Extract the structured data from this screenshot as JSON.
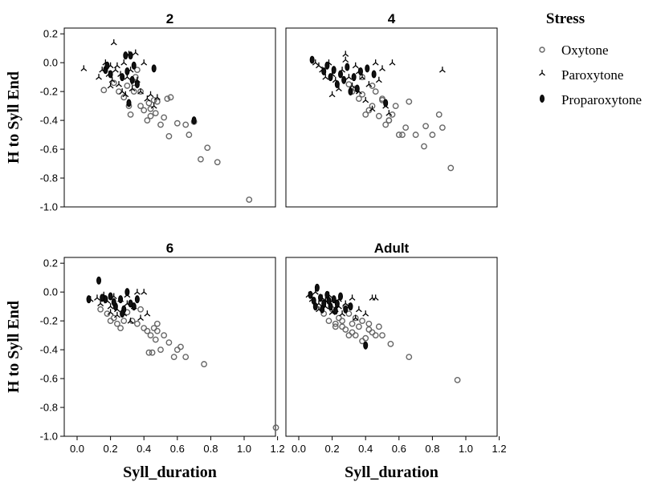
{
  "legend": {
    "title": "Stress",
    "entries": [
      "Oxytone",
      "Paroxytone",
      "Proparoxytone"
    ]
  },
  "chart_data": {
    "type": "scatter",
    "xlabel": "Syll_duration",
    "ylabel": "H to Syll End",
    "xlim": [
      0.0,
      1.25
    ],
    "ylim": [
      -1.0,
      0.24
    ],
    "xticks": [
      "0.0",
      "0.2",
      "0.4",
      "0.6",
      "0.8",
      "1.0",
      "1.2"
    ],
    "yticks": [
      "0.2",
      "0.0",
      "-0.2",
      "-0.4",
      "-0.6",
      "-0.8",
      "-1.0"
    ],
    "legend_position": "right",
    "panels": [
      {
        "title": "2",
        "series": [
          {
            "name": "Oxytone",
            "x": [
              0.16,
              0.22,
              0.25,
              0.28,
              0.31,
              0.32,
              0.34,
              0.35,
              0.36,
              0.38,
              0.4,
              0.42,
              0.43,
              0.44,
              0.46,
              0.47,
              0.48,
              0.5,
              0.52,
              0.54,
              0.55,
              0.56,
              0.6,
              0.65,
              0.67,
              0.7,
              0.74,
              0.78,
              0.84,
              1.03,
              0.3,
              0.34,
              0.44,
              0.38
            ],
            "y": [
              -0.19,
              -0.14,
              -0.2,
              -0.24,
              -0.3,
              -0.36,
              -0.2,
              -0.1,
              -0.05,
              -0.2,
              -0.33,
              -0.4,
              -0.28,
              -0.37,
              -0.26,
              -0.35,
              -0.27,
              -0.43,
              -0.38,
              -0.25,
              -0.51,
              -0.24,
              -0.42,
              -0.43,
              -0.5,
              -0.41,
              -0.67,
              -0.59,
              -0.69,
              -0.95,
              -0.16,
              -0.14,
              -0.32,
              -0.3
            ]
          },
          {
            "name": "Paroxytone",
            "x": [
              0.04,
              0.13,
              0.15,
              0.17,
              0.19,
              0.2,
              0.21,
              0.22,
              0.23,
              0.25,
              0.26,
              0.27,
              0.28,
              0.3,
              0.31,
              0.32,
              0.33,
              0.35,
              0.36,
              0.38,
              0.4,
              0.42,
              0.44,
              0.46,
              0.48,
              0.2,
              0.24,
              0.29
            ],
            "y": [
              -0.04,
              -0.1,
              -0.05,
              0.0,
              -0.08,
              -0.02,
              -0.12,
              0.14,
              -0.05,
              -0.15,
              -0.08,
              -0.2,
              0.0,
              -0.1,
              0.06,
              -0.05,
              -0.18,
              0.07,
              -0.12,
              -0.2,
              0.0,
              -0.25,
              -0.22,
              -0.3,
              -0.24,
              -0.16,
              -0.02,
              -0.22
            ]
          },
          {
            "name": "Proparoxytone",
            "x": [
              0.17,
              0.2,
              0.27,
              0.29,
              0.3,
              0.32,
              0.34,
              0.33,
              0.46,
              0.7,
              0.36,
              0.18,
              0.31
            ],
            "y": [
              -0.05,
              -0.08,
              -0.1,
              0.05,
              -0.06,
              0.05,
              -0.02,
              -0.12,
              -0.04,
              -0.4,
              -0.15,
              -0.02,
              -0.28
            ]
          }
        ]
      },
      {
        "title": "4",
        "series": [
          {
            "name": "Oxytone",
            "x": [
              0.3,
              0.32,
              0.34,
              0.36,
              0.38,
              0.4,
              0.42,
              0.44,
              0.46,
              0.48,
              0.5,
              0.52,
              0.54,
              0.56,
              0.58,
              0.6,
              0.62,
              0.64,
              0.66,
              0.7,
              0.75,
              0.76,
              0.8,
              0.84,
              0.86,
              0.91,
              0.38,
              0.44,
              0.5,
              0.54
            ],
            "y": [
              -0.15,
              -0.2,
              -0.18,
              -0.25,
              -0.1,
              -0.36,
              -0.33,
              -0.3,
              -0.2,
              -0.37,
              -0.26,
              -0.43,
              -0.4,
              -0.36,
              -0.3,
              -0.5,
              -0.5,
              -0.45,
              -0.27,
              -0.5,
              -0.58,
              -0.44,
              -0.5,
              -0.36,
              -0.45,
              -0.73,
              -0.22,
              -0.16,
              -0.25,
              -0.4
            ]
          },
          {
            "name": "Paroxytone",
            "x": [
              0.1,
              0.12,
              0.14,
              0.16,
              0.18,
              0.2,
              0.22,
              0.24,
              0.26,
              0.28,
              0.3,
              0.32,
              0.34,
              0.36,
              0.38,
              0.4,
              0.42,
              0.44,
              0.46,
              0.5,
              0.52,
              0.54,
              0.56,
              0.86,
              0.2,
              0.28,
              0.36,
              0.48
            ],
            "y": [
              0.0,
              -0.02,
              -0.05,
              -0.1,
              0.0,
              -0.08,
              -0.12,
              -0.18,
              -0.05,
              0.06,
              -0.1,
              -0.16,
              -0.02,
              -0.2,
              -0.1,
              -0.26,
              -0.15,
              -0.32,
              0.0,
              -0.04,
              -0.3,
              -0.35,
              0.0,
              -0.05,
              -0.22,
              0.02,
              -0.06,
              -0.12
            ]
          },
          {
            "name": "Proparoxytone",
            "x": [
              0.08,
              0.15,
              0.17,
              0.19,
              0.21,
              0.23,
              0.25,
              0.27,
              0.29,
              0.31,
              0.33,
              0.35,
              0.37,
              0.41,
              0.45,
              0.52
            ],
            "y": [
              0.02,
              -0.06,
              -0.02,
              -0.1,
              -0.05,
              -0.15,
              -0.08,
              -0.12,
              -0.03,
              -0.2,
              -0.1,
              -0.18,
              -0.06,
              -0.04,
              -0.08,
              -0.28
            ]
          }
        ]
      },
      {
        "title": "6",
        "series": [
          {
            "name": "Oxytone",
            "x": [
              0.14,
              0.18,
              0.2,
              0.22,
              0.24,
              0.26,
              0.28,
              0.3,
              0.33,
              0.36,
              0.38,
              0.4,
              0.42,
              0.44,
              0.45,
              0.46,
              0.47,
              0.48,
              0.5,
              0.52,
              0.55,
              0.58,
              0.6,
              0.62,
              0.65,
              0.76,
              1.19,
              0.43,
              0.48
            ],
            "y": [
              -0.12,
              -0.15,
              -0.2,
              -0.18,
              -0.22,
              -0.25,
              -0.2,
              -0.14,
              -0.2,
              -0.22,
              -0.12,
              -0.25,
              -0.27,
              -0.3,
              -0.42,
              -0.25,
              -0.33,
              -0.22,
              -0.4,
              -0.3,
              -0.35,
              -0.45,
              -0.4,
              -0.38,
              -0.45,
              -0.5,
              -0.94,
              -0.42,
              -0.27
            ]
          },
          {
            "name": "Paroxytone",
            "x": [
              0.08,
              0.12,
              0.14,
              0.16,
              0.18,
              0.2,
              0.22,
              0.24,
              0.26,
              0.28,
              0.3,
              0.32,
              0.34,
              0.36,
              0.38,
              0.4,
              0.42,
              0.2,
              0.24,
              0.3
            ],
            "y": [
              -0.05,
              -0.04,
              -0.08,
              -0.02,
              -0.06,
              -0.1,
              -0.03,
              -0.12,
              -0.05,
              -0.15,
              -0.08,
              -0.2,
              -0.1,
              0.0,
              -0.18,
              0.0,
              -0.15,
              -0.14,
              -0.16,
              -0.02
            ]
          },
          {
            "name": "Proparoxytone",
            "x": [
              0.07,
              0.13,
              0.17,
              0.2,
              0.23,
              0.26,
              0.28,
              0.3,
              0.32,
              0.34,
              0.36,
              0.15,
              0.22,
              0.27
            ],
            "y": [
              -0.05,
              0.08,
              -0.05,
              -0.03,
              -0.1,
              -0.05,
              -0.12,
              0.0,
              -0.08,
              -0.1,
              -0.05,
              -0.04,
              -0.07,
              -0.15
            ]
          }
        ]
      },
      {
        "title": "Adult",
        "series": [
          {
            "name": "Oxytone",
            "x": [
              0.15,
              0.18,
              0.2,
              0.22,
              0.24,
              0.26,
              0.28,
              0.3,
              0.32,
              0.34,
              0.36,
              0.38,
              0.4,
              0.42,
              0.44,
              0.46,
              0.48,
              0.5,
              0.55,
              0.66,
              0.95,
              0.22,
              0.26,
              0.3,
              0.34,
              0.38,
              0.42,
              0.28,
              0.32
            ],
            "y": [
              -0.15,
              -0.2,
              -0.12,
              -0.24,
              -0.18,
              -0.2,
              -0.26,
              -0.15,
              -0.22,
              -0.3,
              -0.24,
              -0.2,
              -0.32,
              -0.22,
              -0.28,
              -0.3,
              -0.24,
              -0.3,
              -0.36,
              -0.45,
              -0.61,
              -0.22,
              -0.24,
              -0.3,
              -0.18,
              -0.34,
              -0.26,
              -0.1,
              -0.28
            ]
          },
          {
            "name": "Paroxytone",
            "x": [
              0.06,
              0.08,
              0.1,
              0.12,
              0.14,
              0.16,
              0.18,
              0.2,
              0.22,
              0.24,
              0.26,
              0.28,
              0.3,
              0.32,
              0.34,
              0.36,
              0.4,
              0.44,
              0.46,
              0.12,
              0.16,
              0.2,
              0.24
            ],
            "y": [
              -0.02,
              -0.05,
              0.0,
              -0.08,
              -0.04,
              -0.1,
              -0.02,
              -0.06,
              -0.12,
              -0.05,
              -0.15,
              -0.08,
              -0.1,
              -0.04,
              -0.18,
              -0.12,
              -0.15,
              -0.04,
              -0.04,
              -0.12,
              -0.06,
              -0.14,
              -0.1
            ]
          },
          {
            "name": "Proparoxytone",
            "x": [
              0.07,
              0.09,
              0.11,
              0.13,
              0.15,
              0.17,
              0.19,
              0.21,
              0.23,
              0.25,
              0.28,
              0.31,
              0.4,
              0.1,
              0.14,
              0.18,
              0.22
            ],
            "y": [
              -0.02,
              -0.06,
              0.03,
              -0.04,
              -0.08,
              -0.02,
              -0.1,
              -0.05,
              -0.08,
              -0.03,
              -0.12,
              -0.1,
              -0.37,
              -0.1,
              -0.12,
              -0.06,
              -0.13
            ]
          }
        ]
      }
    ]
  }
}
